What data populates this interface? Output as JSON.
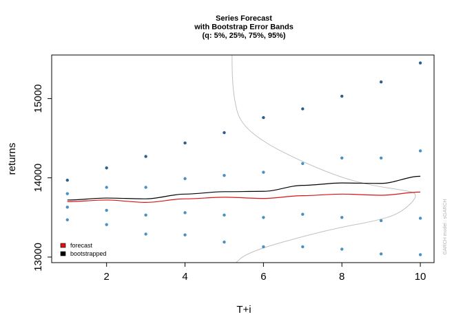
{
  "chart_data": {
    "type": "scatter",
    "title": [
      "Series Forecast",
      "with Bootstrap Error Bands",
      "(q: 5%, 25%, 75%, 95%)"
    ],
    "xlabel": "T+i",
    "ylabel": "returns",
    "xlim": [
      0.6,
      10.35
    ],
    "ylim": [
      12930,
      15550
    ],
    "x_ticks": [
      2,
      4,
      6,
      8,
      10
    ],
    "y_ticks": [
      13000,
      14000,
      15000
    ],
    "x": [
      1,
      2,
      3,
      4,
      5,
      6,
      7,
      8,
      9,
      10
    ],
    "series": [
      {
        "name": "forecast",
        "color": "#dd1111",
        "values": [
          13700,
          13720,
          13690,
          13735,
          13755,
          13740,
          13775,
          13795,
          13780,
          13820
        ]
      },
      {
        "name": "bootstrapped",
        "color": "#000000",
        "values": [
          13720,
          13745,
          13735,
          13795,
          13825,
          13830,
          13905,
          13935,
          13930,
          14020
        ]
      }
    ],
    "quantile_points": [
      {
        "color": "#2e5f8a",
        "values": [
          13970,
          14125,
          14270,
          14440,
          14570,
          14760,
          14870,
          15030,
          15210,
          15450
        ]
      },
      {
        "color": "#4a90c2",
        "values": [
          13800,
          13880,
          13880,
          13990,
          14030,
          14070,
          14180,
          14250,
          14250,
          14340
        ]
      },
      {
        "color": "#4a90c2",
        "values": [
          13630,
          13590,
          13530,
          13560,
          13530,
          13500,
          13540,
          13500,
          13460,
          13490
        ]
      },
      {
        "color": "#4a90c2",
        "values": [
          13470,
          13410,
          13290,
          13280,
          13190,
          13130,
          13130,
          13100,
          13040,
          13030
        ]
      }
    ],
    "density_curve": {
      "color": "#c0c0c0",
      "x": [
        5.2,
        5.2,
        5.25,
        5.4,
        6.0,
        7.0,
        8.0,
        8.8,
        9.5,
        10.0,
        9.5,
        8.8,
        8.0,
        7.0,
        6.0,
        5.5,
        5.3
      ],
      "y": [
        15600,
        15300,
        15000,
        14700,
        14450,
        14200,
        14000,
        13900,
        13850,
        13800,
        13550,
        13450,
        13380,
        13260,
        13120,
        13020,
        12930
      ]
    },
    "legend": {
      "position": "bottom-left",
      "entries": [
        "forecast",
        "bootstrapped"
      ]
    },
    "side_note": "GARCH model : sGARCH",
    "grid": false
  }
}
